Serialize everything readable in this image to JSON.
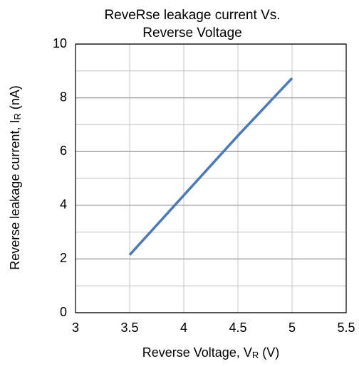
{
  "chart_data": {
    "type": "line",
    "title": [
      "ReveRse leakage current Vs.",
      "Reverse Voltage"
    ],
    "x_label": [
      "Reverse Voltage, V",
      "R",
      " (V)"
    ],
    "y_label": [
      "Reverse leakage current, I",
      "R",
      " (nA)"
    ],
    "x": [
      3.5,
      4,
      4.5,
      5
    ],
    "series": [
      {
        "name": "IR",
        "color": "#4a7ab8",
        "values": [
          2.15,
          4.37,
          6.59,
          8.73
        ]
      }
    ],
    "xlim": [
      3,
      5.5
    ],
    "xticks": [
      3,
      3.5,
      4,
      4.5,
      5,
      5.5
    ],
    "ylim": [
      0,
      10
    ],
    "yticks": [
      0,
      2,
      4,
      6,
      8,
      10
    ],
    "y_minor_grid": [
      1,
      3,
      5,
      7,
      9
    ],
    "grid": true
  }
}
